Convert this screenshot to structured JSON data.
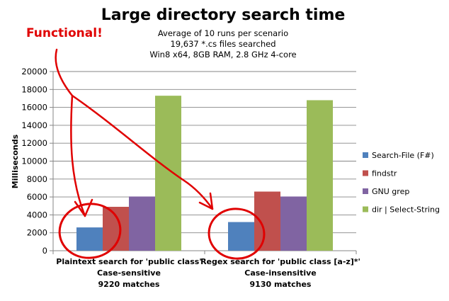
{
  "chart_data": {
    "type": "bar",
    "title": "Large directory search time",
    "subtitle_lines": [
      "Average of 10 runs per scenario",
      "19,637 *.cs files searched",
      "Win8 x64, 8GB RAM, 2.8 GHz 4-core"
    ],
    "ylabel": "Milliseconds",
    "ylim": [
      0,
      20000
    ],
    "yticks": [
      0,
      2000,
      4000,
      6000,
      8000,
      10000,
      12000,
      14000,
      16000,
      18000,
      20000
    ],
    "grid": true,
    "legend_position": "right",
    "categories": [
      [
        "Plaintext search for 'public class'",
        "Case-sensitive",
        "9220 matches"
      ],
      [
        "Regex search for 'public class [a-z]*'",
        "Case-insensitive",
        "9130 matches"
      ]
    ],
    "series": [
      {
        "name": "Search-File (F#)",
        "values": [
          2600,
          3200
        ],
        "color": "#4f81bd"
      },
      {
        "name": "findstr",
        "values": [
          4900,
          6600
        ],
        "color": "#c0504d"
      },
      {
        "name": "GNU grep",
        "values": [
          6050,
          6050
        ],
        "color": "#8064a2"
      },
      {
        "name": "dir | Select-String",
        "values": [
          17300,
          16800
        ],
        "color": "#9bbb59"
      }
    ]
  },
  "annotation": {
    "text": "Functional!",
    "color": "#e00000"
  }
}
